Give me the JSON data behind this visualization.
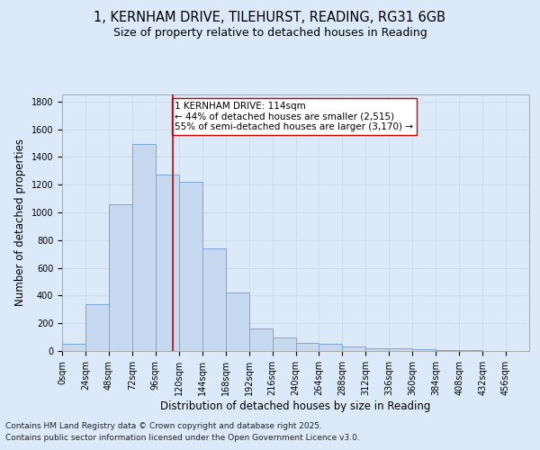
{
  "title_line1": "1, KERNHAM DRIVE, TILEHURST, READING, RG31 6GB",
  "title_line2": "Size of property relative to detached houses in Reading",
  "xlabel": "Distribution of detached houses by size in Reading",
  "ylabel": "Number of detached properties",
  "bar_edges": [
    0,
    24,
    48,
    72,
    96,
    120,
    144,
    168,
    192,
    216,
    240,
    264,
    288,
    312,
    336,
    360,
    384,
    408,
    432,
    456,
    480
  ],
  "bar_heights": [
    50,
    340,
    1060,
    1490,
    1270,
    1220,
    740,
    420,
    160,
    100,
    60,
    55,
    30,
    20,
    20,
    10,
    5,
    5,
    0,
    0
  ],
  "bar_facecolor": "#c6d9f0",
  "bar_edgecolor": "#7da6d4",
  "vline_x": 114,
  "vline_color": "#cc0000",
  "annotation_text": "1 KERNHAM DRIVE: 114sqm\n← 44% of detached houses are smaller (2,515)\n55% of semi-detached houses are larger (3,170) →",
  "annotation_box_edgecolor": "#cc0000",
  "annotation_box_facecolor": "#ffffff",
  "ylim": [
    0,
    1850
  ],
  "yticks": [
    0,
    200,
    400,
    600,
    800,
    1000,
    1200,
    1400,
    1600,
    1800
  ],
  "grid_color": "#c8d8e8",
  "background_color": "#dce9f8",
  "plot_bg_color": "#dce9f8",
  "footer_line1": "Contains HM Land Registry data © Crown copyright and database right 2025.",
  "footer_line2": "Contains public sector information licensed under the Open Government Licence v3.0.",
  "title_fontsize": 10.5,
  "subtitle_fontsize": 9,
  "axis_label_fontsize": 8.5,
  "tick_fontsize": 7,
  "annotation_fontsize": 7.5,
  "footer_fontsize": 6.5
}
